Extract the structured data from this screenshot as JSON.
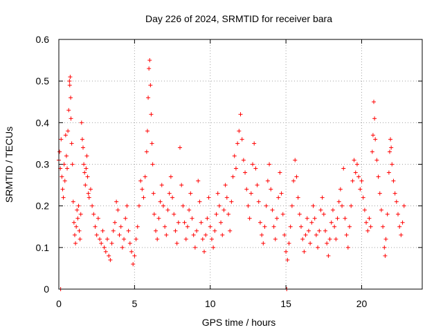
{
  "chart_data": {
    "type": "scatter",
    "title": "Day 226 of 2024, SRMTID for receiver bara",
    "xlabel": "GPS time / hours",
    "ylabel": "SRMTID / TECUs",
    "xlim": [
      0,
      24
    ],
    "ylim": [
      0,
      0.6
    ],
    "xticks": [
      0,
      5,
      10,
      15,
      20
    ],
    "xtick_labels": [
      "0",
      "5",
      "10",
      "15",
      "20"
    ],
    "yticks": [
      0,
      0.1,
      0.2,
      0.3,
      0.4,
      0.5,
      0.6
    ],
    "ytick_labels": [
      "0",
      "0.1",
      "0.2",
      "0.3",
      "0.4",
      "0.5",
      "0.6"
    ],
    "grid": true,
    "marker": "+",
    "series_color": "#ff0000",
    "series": [
      {
        "name": "SRMTID",
        "points": [
          [
            0.0,
            0.31
          ],
          [
            0.05,
            0.33
          ],
          [
            0.1,
            0.29
          ],
          [
            0.12,
            0.0
          ],
          [
            0.15,
            0.36
          ],
          [
            0.2,
            0.27
          ],
          [
            0.25,
            0.24
          ],
          [
            0.3,
            0.22
          ],
          [
            0.35,
            0.3
          ],
          [
            0.4,
            0.26
          ],
          [
            0.45,
            0.37
          ],
          [
            0.5,
            0.32
          ],
          [
            0.55,
            0.29
          ],
          [
            0.6,
            0.38
          ],
          [
            0.65,
            0.43
          ],
          [
            0.7,
            0.5
          ],
          [
            0.72,
            0.49
          ],
          [
            0.75,
            0.51
          ],
          [
            0.78,
            0.46
          ],
          [
            0.8,
            0.41
          ],
          [
            0.85,
            0.35
          ],
          [
            0.9,
            0.3
          ],
          [
            0.95,
            0.21
          ],
          [
            1.0,
            0.16
          ],
          [
            1.05,
            0.13
          ],
          [
            1.1,
            0.11
          ],
          [
            1.15,
            0.15
          ],
          [
            1.2,
            0.19
          ],
          [
            1.25,
            0.17
          ],
          [
            1.3,
            0.2
          ],
          [
            1.35,
            0.14
          ],
          [
            1.4,
            0.12
          ],
          [
            1.45,
            0.18
          ],
          [
            1.5,
            0.4
          ],
          [
            1.55,
            0.36
          ],
          [
            1.6,
            0.34
          ],
          [
            1.65,
            0.3
          ],
          [
            1.7,
            0.28
          ],
          [
            1.75,
            0.25
          ],
          [
            1.8,
            0.29
          ],
          [
            1.85,
            0.32
          ],
          [
            1.9,
            0.27
          ],
          [
            1.95,
            0.23
          ],
          [
            2.0,
            0.22
          ],
          [
            2.1,
            0.24
          ],
          [
            2.2,
            0.2
          ],
          [
            2.3,
            0.18
          ],
          [
            2.4,
            0.15
          ],
          [
            2.5,
            0.13
          ],
          [
            2.6,
            0.17
          ],
          [
            2.7,
            0.12
          ],
          [
            2.8,
            0.11
          ],
          [
            2.9,
            0.14
          ],
          [
            3.0,
            0.1
          ],
          [
            3.1,
            0.09
          ],
          [
            3.2,
            0.12
          ],
          [
            3.3,
            0.08
          ],
          [
            3.4,
            0.07
          ],
          [
            3.5,
            0.11
          ],
          [
            3.6,
            0.14
          ],
          [
            3.7,
            0.16
          ],
          [
            3.8,
            0.21
          ],
          [
            3.9,
            0.19
          ],
          [
            4.0,
            0.13
          ],
          [
            4.1,
            0.15
          ],
          [
            4.2,
            0.1
          ],
          [
            4.3,
            0.12
          ],
          [
            4.4,
            0.17
          ],
          [
            4.5,
            0.2
          ],
          [
            4.6,
            0.14
          ],
          [
            4.7,
            0.11
          ],
          [
            4.8,
            0.09
          ],
          [
            4.9,
            0.06
          ],
          [
            5.0,
            0.08
          ],
          [
            5.1,
            0.12
          ],
          [
            5.2,
            0.15
          ],
          [
            5.3,
            0.2
          ],
          [
            5.4,
            0.26
          ],
          [
            5.5,
            0.24
          ],
          [
            5.6,
            0.22
          ],
          [
            5.7,
            0.27
          ],
          [
            5.8,
            0.33
          ],
          [
            5.85,
            0.38
          ],
          [
            5.9,
            0.46
          ],
          [
            5.95,
            0.53
          ],
          [
            6.0,
            0.55
          ],
          [
            6.05,
            0.49
          ],
          [
            6.1,
            0.42
          ],
          [
            6.15,
            0.35
          ],
          [
            6.2,
            0.3
          ],
          [
            6.25,
            0.23
          ],
          [
            6.3,
            0.18
          ],
          [
            6.4,
            0.14
          ],
          [
            6.5,
            0.12
          ],
          [
            6.6,
            0.17
          ],
          [
            6.7,
            0.21
          ],
          [
            6.8,
            0.25
          ],
          [
            6.9,
            0.2
          ],
          [
            7.0,
            0.15
          ],
          [
            7.1,
            0.13
          ],
          [
            7.2,
            0.19
          ],
          [
            7.3,
            0.23
          ],
          [
            7.4,
            0.27
          ],
          [
            7.5,
            0.22
          ],
          [
            7.6,
            0.18
          ],
          [
            7.7,
            0.14
          ],
          [
            7.8,
            0.11
          ],
          [
            7.9,
            0.16
          ],
          [
            8.0,
            0.34
          ],
          [
            8.1,
            0.25
          ],
          [
            8.2,
            0.2
          ],
          [
            8.3,
            0.16
          ],
          [
            8.4,
            0.12
          ],
          [
            8.5,
            0.15
          ],
          [
            8.6,
            0.19
          ],
          [
            8.7,
            0.23
          ],
          [
            8.8,
            0.17
          ],
          [
            8.9,
            0.13
          ],
          [
            9.0,
            0.1
          ],
          [
            9.1,
            0.14
          ],
          [
            9.2,
            0.26
          ],
          [
            9.3,
            0.21
          ],
          [
            9.4,
            0.16
          ],
          [
            9.5,
            0.12
          ],
          [
            9.6,
            0.09
          ],
          [
            9.7,
            0.13
          ],
          [
            9.8,
            0.17
          ],
          [
            9.9,
            0.22
          ],
          [
            10.0,
            0.15
          ],
          [
            10.1,
            0.12
          ],
          [
            10.2,
            0.1
          ],
          [
            10.3,
            0.14
          ],
          [
            10.4,
            0.18
          ],
          [
            10.5,
            0.23
          ],
          [
            10.6,
            0.2
          ],
          [
            10.7,
            0.16
          ],
          [
            10.8,
            0.13
          ],
          [
            10.9,
            0.19
          ],
          [
            11.0,
            0.25
          ],
          [
            11.1,
            0.22
          ],
          [
            11.2,
            0.18
          ],
          [
            11.3,
            0.14
          ],
          [
            11.4,
            0.21
          ],
          [
            11.5,
            0.27
          ],
          [
            11.6,
            0.32
          ],
          [
            11.7,
            0.29
          ],
          [
            11.8,
            0.35
          ],
          [
            11.9,
            0.38
          ],
          [
            12.0,
            0.42
          ],
          [
            12.1,
            0.36
          ],
          [
            12.2,
            0.31
          ],
          [
            12.3,
            0.28
          ],
          [
            12.4,
            0.24
          ],
          [
            12.5,
            0.2
          ],
          [
            12.6,
            0.17
          ],
          [
            12.7,
            0.23
          ],
          [
            12.8,
            0.3
          ],
          [
            12.9,
            0.35
          ],
          [
            13.0,
            0.29
          ],
          [
            13.1,
            0.25
          ],
          [
            13.2,
            0.21
          ],
          [
            13.3,
            0.16
          ],
          [
            13.4,
            0.13
          ],
          [
            13.5,
            0.11
          ],
          [
            13.6,
            0.15
          ],
          [
            13.7,
            0.2
          ],
          [
            13.8,
            0.26
          ],
          [
            13.9,
            0.3
          ],
          [
            14.0,
            0.24
          ],
          [
            14.1,
            0.19
          ],
          [
            14.2,
            0.15
          ],
          [
            14.3,
            0.12
          ],
          [
            14.4,
            0.17
          ],
          [
            14.5,
            0.22
          ],
          [
            14.6,
            0.28
          ],
          [
            14.7,
            0.23
          ],
          [
            14.8,
            0.18
          ],
          [
            14.9,
            0.13
          ],
          [
            15.0,
            0.09
          ],
          [
            15.05,
            0.0
          ],
          [
            15.1,
            0.07
          ],
          [
            15.2,
            0.11
          ],
          [
            15.3,
            0.15
          ],
          [
            15.4,
            0.2
          ],
          [
            15.5,
            0.26
          ],
          [
            15.6,
            0.31
          ],
          [
            15.7,
            0.27
          ],
          [
            15.8,
            0.22
          ],
          [
            15.9,
            0.18
          ],
          [
            16.0,
            0.15
          ],
          [
            16.1,
            0.12
          ],
          [
            16.2,
            0.09
          ],
          [
            16.3,
            0.13
          ],
          [
            16.4,
            0.17
          ],
          [
            16.5,
            0.14
          ],
          [
            16.6,
            0.11
          ],
          [
            16.7,
            0.16
          ],
          [
            16.8,
            0.2
          ],
          [
            16.9,
            0.17
          ],
          [
            17.0,
            0.13
          ],
          [
            17.1,
            0.1
          ],
          [
            17.2,
            0.14
          ],
          [
            17.3,
            0.19
          ],
          [
            17.4,
            0.22
          ],
          [
            17.5,
            0.18
          ],
          [
            17.6,
            0.14
          ],
          [
            17.7,
            0.11
          ],
          [
            17.8,
            0.08
          ],
          [
            17.9,
            0.12
          ],
          [
            18.0,
            0.16
          ],
          [
            18.1,
            0.19
          ],
          [
            18.2,
            0.15
          ],
          [
            18.3,
            0.12
          ],
          [
            18.4,
            0.17
          ],
          [
            18.5,
            0.21
          ],
          [
            18.6,
            0.24
          ],
          [
            18.7,
            0.2
          ],
          [
            18.8,
            0.29
          ],
          [
            18.9,
            0.17
          ],
          [
            19.0,
            0.13
          ],
          [
            19.1,
            0.1
          ],
          [
            19.2,
            0.15
          ],
          [
            19.3,
            0.2
          ],
          [
            19.4,
            0.26
          ],
          [
            19.5,
            0.31
          ],
          [
            19.6,
            0.28
          ],
          [
            19.7,
            0.3
          ],
          [
            19.8,
            0.27
          ],
          [
            19.9,
            0.24
          ],
          [
            20.0,
            0.26
          ],
          [
            20.1,
            0.22
          ],
          [
            20.2,
            0.19
          ],
          [
            20.3,
            0.16
          ],
          [
            20.4,
            0.14
          ],
          [
            20.5,
            0.17
          ],
          [
            20.6,
            0.15
          ],
          [
            20.7,
            0.33
          ],
          [
            20.75,
            0.37
          ],
          [
            20.8,
            0.45
          ],
          [
            20.85,
            0.41
          ],
          [
            20.9,
            0.36
          ],
          [
            21.0,
            0.31
          ],
          [
            21.1,
            0.27
          ],
          [
            21.2,
            0.23
          ],
          [
            21.3,
            0.19
          ],
          [
            21.4,
            0.15
          ],
          [
            21.5,
            0.1
          ],
          [
            21.55,
            0.08
          ],
          [
            21.6,
            0.12
          ],
          [
            21.7,
            0.18
          ],
          [
            21.8,
            0.28
          ],
          [
            21.85,
            0.33
          ],
          [
            21.9,
            0.36
          ],
          [
            21.95,
            0.34
          ],
          [
            22.0,
            0.3
          ],
          [
            22.1,
            0.26
          ],
          [
            22.2,
            0.23
          ],
          [
            22.3,
            0.21
          ],
          [
            22.4,
            0.18
          ],
          [
            22.5,
            0.15
          ],
          [
            22.6,
            0.13
          ],
          [
            22.7,
            0.16
          ],
          [
            22.8,
            0.2
          ]
        ]
      }
    ]
  }
}
